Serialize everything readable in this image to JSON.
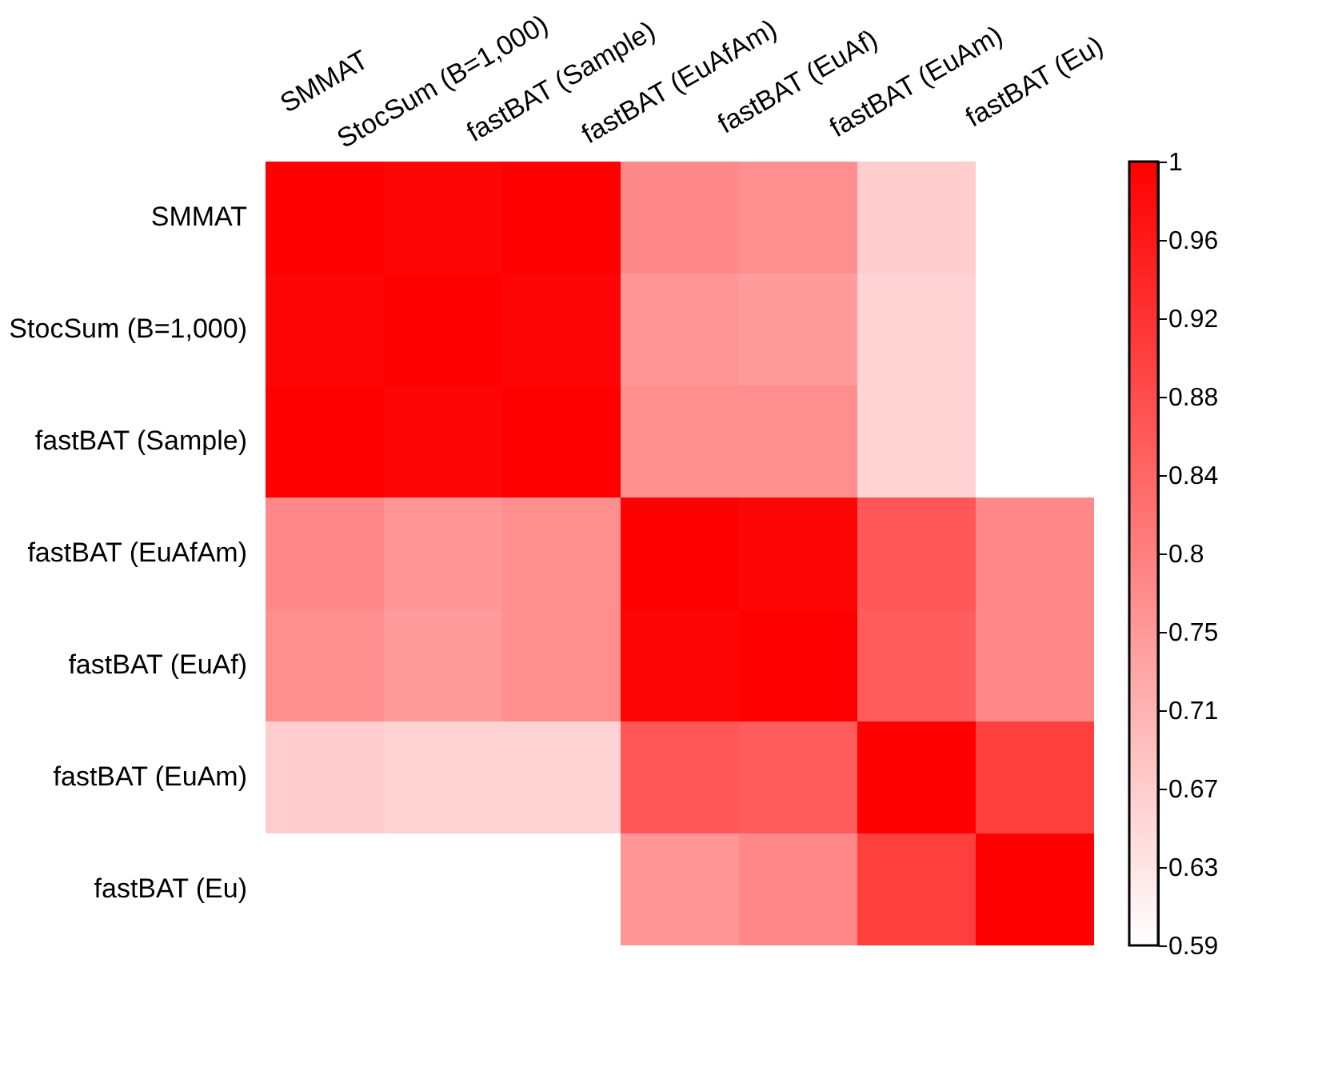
{
  "chart_data": {
    "type": "heatmap",
    "categories": [
      "SMMAT",
      "StocSum (B=1,000)",
      "fastBAT (Sample)",
      "fastBAT (EuAfAm)",
      "fastBAT (EuAf)",
      "fastBAT (EuAm)",
      "fastBAT (Eu)"
    ],
    "y_categories": [
      "SMMAT",
      "StocSum (B=1,000)",
      "fastBAT (Sample)",
      "fastBAT (EuAfAm)",
      "fastBAT (EuAf)",
      "fastBAT (EuAm)",
      "fastBAT (Eu)"
    ],
    "cells": [
      [
        1,
        0.99,
        1,
        0.78,
        0.77,
        0.67,
        null
      ],
      [
        0.99,
        1,
        0.99,
        0.76,
        0.75,
        0.66,
        null
      ],
      [
        1,
        0.99,
        1,
        0.77,
        0.77,
        0.66,
        null
      ],
      [
        0.78,
        0.76,
        0.77,
        1,
        0.99,
        0.86,
        0.78
      ],
      [
        0.77,
        0.75,
        0.77,
        0.99,
        1,
        0.85,
        0.78
      ],
      [
        0.67,
        0.66,
        0.66,
        0.86,
        0.85,
        1,
        0.9
      ],
      [
        null,
        null,
        null,
        0.76,
        0.78,
        0.9,
        1
      ]
    ],
    "colors": [
      "#ffffff",
      "#ff0000"
    ],
    "clim": [
      0.59,
      1
    ],
    "cticks": [
      0.59,
      {
        "value": 0.631,
        "label": "0.63"
      },
      {
        "value": 0.672,
        "label": "0.67"
      },
      {
        "value": 0.713,
        "label": "0.71"
      },
      {
        "value": 0.754,
        "label": "0.75"
      },
      {
        "value": 0.795,
        "label": "0.8"
      },
      {
        "value": 0.836,
        "label": "0.84"
      },
      {
        "value": 0.877,
        "label": "0.88"
      },
      {
        "value": 0.918,
        "label": "0.92"
      },
      {
        "value": 0.959,
        "label": "0.96"
      },
      1
    ]
  }
}
